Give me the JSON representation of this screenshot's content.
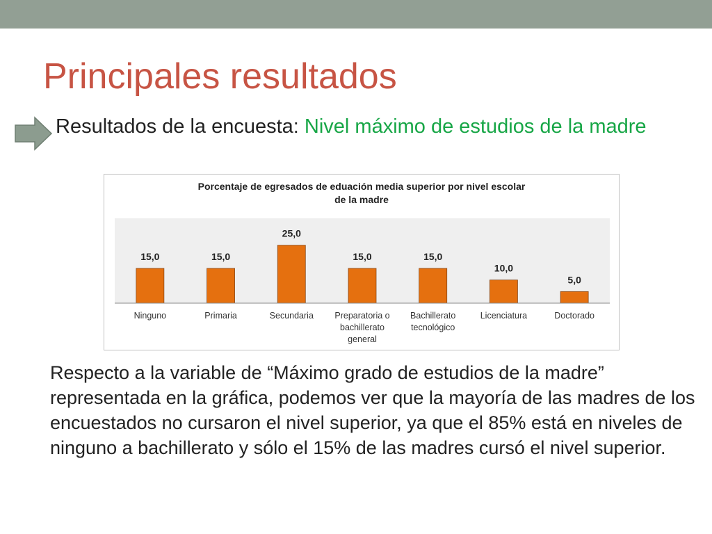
{
  "slide": {
    "title": "Principales resultados",
    "subtitle_prefix": "Resultados de la encuesta: ",
    "subtitle_highlight": "Nivel máximo de estudios de la madre",
    "body": "Respecto a la variable de “Máximo grado de estudios de la madre” representada en la gráfica, podemos ver que la mayoría de las madres de los encuestados no cursaron el nivel superior, ya que el 85% está en niveles de ninguno a bachillerato y sólo el 15% de las madres cursó el nivel superior.",
    "bullet_icon": "right-arrow-icon"
  },
  "colors": {
    "title": "#c75444",
    "highlight": "#17a646",
    "bar": "#e5700f",
    "top_bar": "#929f94"
  },
  "chart_data": {
    "type": "bar",
    "title": "Porcentaje de egresados de eduación media superior por nivel escolar de la madre",
    "title_lines": [
      "Porcentaje de egresados de eduación media superior por nivel escolar",
      "de la madre"
    ],
    "categories": [
      "Ninguno",
      "Primaria",
      "Secundaria",
      "Preparatoria o bachillerato general",
      "Bachillerato tecnológico",
      "Licenciatura",
      "Doctorado"
    ],
    "category_lines": [
      [
        "Ninguno"
      ],
      [
        "Primaria"
      ],
      [
        "Secundaria"
      ],
      [
        "Preparatoria o",
        "bachillerato",
        "general"
      ],
      [
        "Bachillerato",
        "tecnológico"
      ],
      [
        "Licenciatura"
      ],
      [
        "Doctorado"
      ]
    ],
    "values": [
      15.0,
      15.0,
      25.0,
      15.0,
      15.0,
      10.0,
      5.0
    ],
    "value_labels": [
      "15,0",
      "15,0",
      "25,0",
      "15,0",
      "15,0",
      "10,0",
      "5,0"
    ],
    "ylim": [
      0,
      30
    ],
    "xlabel": "",
    "ylabel": "",
    "grid": false,
    "legend": "none"
  }
}
